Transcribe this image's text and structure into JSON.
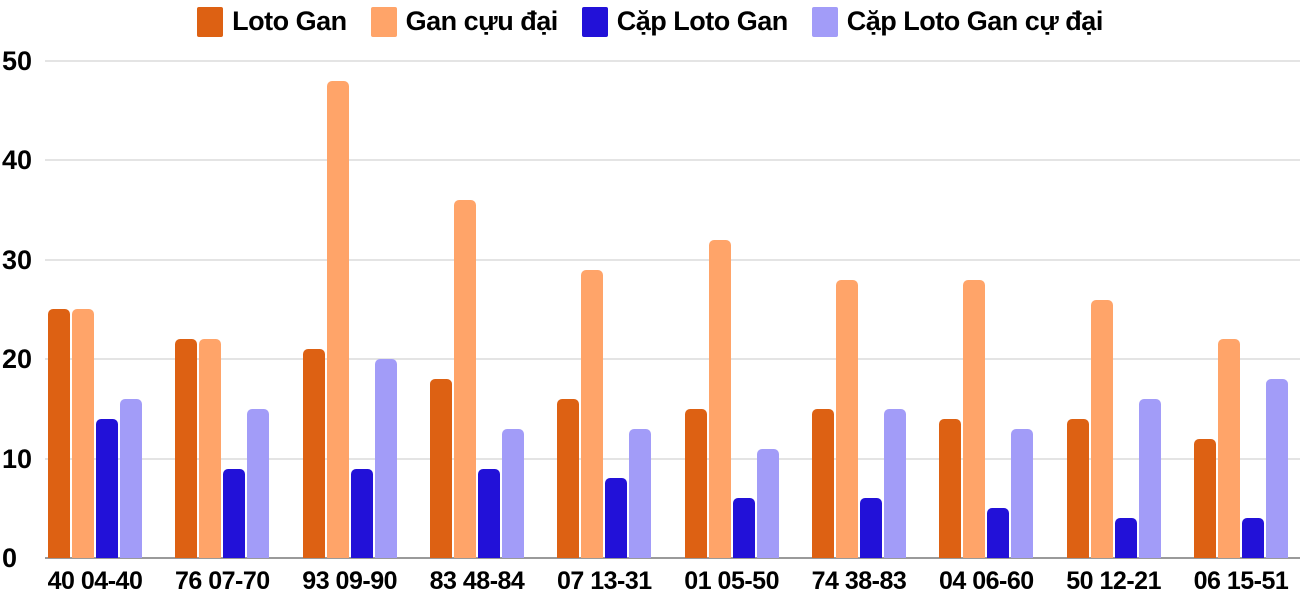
{
  "chart_data": {
    "type": "bar",
    "title": "",
    "xlabel": "",
    "ylabel": "",
    "categories": [
      "40 04-40",
      "76 07-70",
      "93 09-90",
      "83 48-84",
      "07 13-31",
      "01 05-50",
      "74 38-83",
      "04 06-60",
      "50 12-21",
      "06 15-51"
    ],
    "series": [
      {
        "name": "Loto Gan",
        "color": "#dd6113",
        "values": [
          25,
          22,
          21,
          18,
          16,
          15,
          15,
          14,
          14,
          12
        ]
      },
      {
        "name": "Gan cựu đại",
        "color": "#ffa469",
        "values": [
          25,
          22,
          48,
          36,
          29,
          32,
          28,
          28,
          26,
          22
        ]
      },
      {
        "name": "Cặp Loto Gan",
        "color": "#2211d8",
        "values": [
          14,
          9,
          9,
          9,
          8,
          6,
          6,
          5,
          4,
          4
        ]
      },
      {
        "name": "Cặp Loto Gan cự đại",
        "color": "#a29cf8",
        "values": [
          16,
          15,
          20,
          13,
          13,
          11,
          15,
          13,
          16,
          18
        ]
      }
    ],
    "ylim": [
      0,
      50
    ],
    "yticks": [
      0,
      10,
      20,
      30,
      40,
      50
    ],
    "grid": true,
    "legend_position": "top",
    "colors": {
      "gridline": "#e4e4e4",
      "axis_line": "#9a9a9a",
      "text": "#000000",
      "background": "#ffffff"
    }
  }
}
